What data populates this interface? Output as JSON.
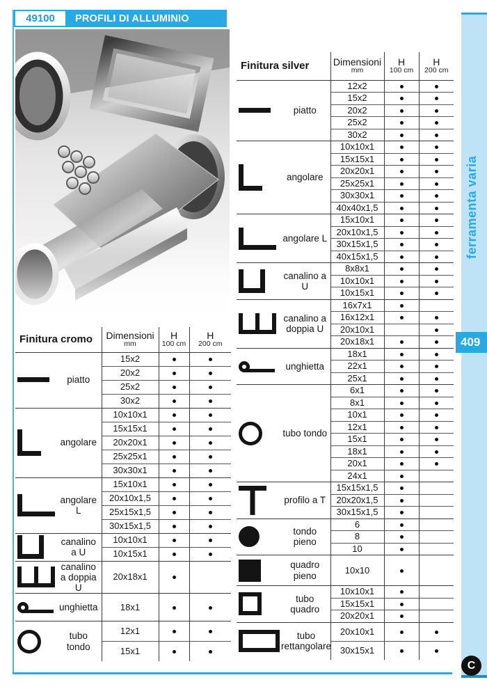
{
  "page": {
    "code": "49100",
    "title": "PROFILI DI ALLUMINIO",
    "side_label": "ferramenta varia",
    "page_number": "409",
    "logo_letter": "C",
    "colors": {
      "accent": "#29a9e1",
      "sidebar_bg": "#bee3f6",
      "table_line": "#3a3a3a"
    }
  },
  "photo": {
    "description": "aluminum-profiles-photo"
  },
  "tables": [
    {
      "id": "cromo",
      "title": "Finitura cromo",
      "columns": {
        "dim_label": "Dimensioni",
        "dim_sub": "mm",
        "h_label": "H",
        "h100_sub": "100 cm",
        "h200_sub": "200 cm"
      },
      "sections": [
        {
          "icon": "piatto-icon",
          "label": "piatto",
          "rows": [
            {
              "dim": "15x2",
              "h100": true,
              "h200": true
            },
            {
              "dim": "20x2",
              "h100": true,
              "h200": true
            },
            {
              "dim": "25x2",
              "h100": true,
              "h200": true
            },
            {
              "dim": "30x2",
              "h100": true,
              "h200": true
            }
          ]
        },
        {
          "icon": "angolare-icon",
          "label": "angolare",
          "rows": [
            {
              "dim": "10x10x1",
              "h100": true,
              "h200": true
            },
            {
              "dim": "15x15x1",
              "h100": true,
              "h200": true
            },
            {
              "dim": "20x20x1",
              "h100": true,
              "h200": true
            },
            {
              "dim": "25x25x1",
              "h100": true,
              "h200": true
            },
            {
              "dim": "30x30x1",
              "h100": true,
              "h200": true
            }
          ]
        },
        {
          "icon": "angolare-l-icon",
          "label": "angolare L",
          "rows": [
            {
              "dim": "15x10x1",
              "h100": true,
              "h200": true
            },
            {
              "dim": "20x10x1,5",
              "h100": true,
              "h200": true
            },
            {
              "dim": "25x15x1,5",
              "h100": true,
              "h200": true
            },
            {
              "dim": "30x15x1,5",
              "h100": true,
              "h200": true
            }
          ]
        },
        {
          "icon": "canalino-u-icon",
          "label": "canalino a U",
          "rows": [
            {
              "dim": "10x10x1",
              "h100": true,
              "h200": true
            },
            {
              "dim": "10x15x1",
              "h100": true,
              "h200": true
            }
          ]
        },
        {
          "icon": "canalino-doppia-u-icon",
          "label": "canalino a doppia U",
          "rows": [
            {
              "dim": "20x18x1",
              "h100": true,
              "h200": false
            }
          ]
        },
        {
          "icon": "unghietta-icon",
          "label": "unghietta",
          "rows": [
            {
              "dim": "18x1",
              "h100": true,
              "h200": true
            }
          ]
        },
        {
          "icon": "tubo-tondo-icon",
          "label": "tubo tondo",
          "rows": [
            {
              "dim": "12x1",
              "h100": true,
              "h200": true
            },
            {
              "dim": "15x1",
              "h100": true,
              "h200": true
            }
          ]
        }
      ]
    },
    {
      "id": "silver",
      "title": "Finitura silver",
      "columns": {
        "dim_label": "Dimensioni",
        "dim_sub": "mm",
        "h_label": "H",
        "h100_sub": "100 cm",
        "h200_sub": "200 cm"
      },
      "sections": [
        {
          "icon": "piatto-icon",
          "label": "piatto",
          "rows": [
            {
              "dim": "12x2",
              "h100": true,
              "h200": true
            },
            {
              "dim": "15x2",
              "h100": true,
              "h200": true
            },
            {
              "dim": "20x2",
              "h100": true,
              "h200": true
            },
            {
              "dim": "25x2",
              "h100": true,
              "h200": true
            },
            {
              "dim": "30x2",
              "h100": true,
              "h200": true
            }
          ]
        },
        {
          "icon": "angolare-icon",
          "label": "angolare",
          "rows": [
            {
              "dim": "10x10x1",
              "h100": true,
              "h200": true
            },
            {
              "dim": "15x15x1",
              "h100": true,
              "h200": true
            },
            {
              "dim": "20x20x1",
              "h100": true,
              "h200": true
            },
            {
              "dim": "25x25x1",
              "h100": true,
              "h200": true
            },
            {
              "dim": "30x30x1",
              "h100": true,
              "h200": true
            },
            {
              "dim": "40x40x1,5",
              "h100": true,
              "h200": true
            }
          ]
        },
        {
          "icon": "angolare-l-icon",
          "label": "angolare L",
          "rows": [
            {
              "dim": "15x10x1",
              "h100": true,
              "h200": true
            },
            {
              "dim": "20x10x1,5",
              "h100": true,
              "h200": true
            },
            {
              "dim": "30x15x1,5",
              "h100": true,
              "h200": true
            },
            {
              "dim": "40x15x1,5",
              "h100": true,
              "h200": true
            }
          ]
        },
        {
          "icon": "canalino-u-icon",
          "label": "canalino a U",
          "rows": [
            {
              "dim": "8x8x1",
              "h100": true,
              "h200": true
            },
            {
              "dim": "10x10x1",
              "h100": true,
              "h200": true
            },
            {
              "dim": "10x15x1",
              "h100": true,
              "h200": true
            }
          ]
        },
        {
          "icon": "canalino-doppia-u-icon",
          "label": "canalino a doppia U",
          "rows": [
            {
              "dim": "16x7x1",
              "h100": true,
              "h200": false
            },
            {
              "dim": "16x12x1",
              "h100": true,
              "h200": true
            },
            {
              "dim": "20x10x1",
              "h100": false,
              "h200": true
            },
            {
              "dim": "20x18x1",
              "h100": true,
              "h200": true
            }
          ]
        },
        {
          "icon": "unghietta-icon",
          "label": "unghietta",
          "rows": [
            {
              "dim": "18x1",
              "h100": true,
              "h200": true
            },
            {
              "dim": "22x1",
              "h100": true,
              "h200": true
            },
            {
              "dim": "25x1",
              "h100": true,
              "h200": true
            }
          ]
        },
        {
          "icon": "tubo-tondo-icon",
          "label": "tubo tondo",
          "rows": [
            {
              "dim": "6x1",
              "h100": true,
              "h200": true
            },
            {
              "dim": "8x1",
              "h100": true,
              "h200": true
            },
            {
              "dim": "10x1",
              "h100": true,
              "h200": true
            },
            {
              "dim": "12x1",
              "h100": true,
              "h200": true
            },
            {
              "dim": "15x1",
              "h100": true,
              "h200": true
            },
            {
              "dim": "18x1",
              "h100": true,
              "h200": true
            },
            {
              "dim": "20x1",
              "h100": true,
              "h200": true
            },
            {
              "dim": "24x1",
              "h100": true,
              "h200": false
            }
          ]
        },
        {
          "icon": "profilo-t-icon",
          "label": "profilo a T",
          "rows": [
            {
              "dim": "15x15x1,5",
              "h100": true,
              "h200": false
            },
            {
              "dim": "20x20x1,5",
              "h100": true,
              "h200": false
            },
            {
              "dim": "30x15x1,5",
              "h100": true,
              "h200": false
            }
          ]
        },
        {
          "icon": "tondo-pieno-icon",
          "label": "tondo pieno",
          "rows": [
            {
              "dim": "6",
              "h100": true,
              "h200": false
            },
            {
              "dim": "8",
              "h100": true,
              "h200": false
            },
            {
              "dim": "10",
              "h100": true,
              "h200": false
            }
          ]
        },
        {
          "icon": "quadro-pieno-icon",
          "label": "quadro pieno",
          "rows": [
            {
              "dim": "10x10",
              "h100": true,
              "h200": false
            }
          ]
        },
        {
          "icon": "tubo-quadro-icon",
          "label": "tubo quadro",
          "rows": [
            {
              "dim": "10x10x1",
              "h100": true,
              "h200": false
            },
            {
              "dim": "15x15x1",
              "h100": true,
              "h200": false
            },
            {
              "dim": "20x20x1",
              "h100": true,
              "h200": false
            }
          ]
        },
        {
          "icon": "tubo-rettangolare-icon",
          "label": "tubo rettangolare",
          "rows": [
            {
              "dim": "20x10x1",
              "h100": true,
              "h200": true
            },
            {
              "dim": "30x15x1",
              "h100": true,
              "h200": true
            }
          ]
        }
      ]
    }
  ]
}
